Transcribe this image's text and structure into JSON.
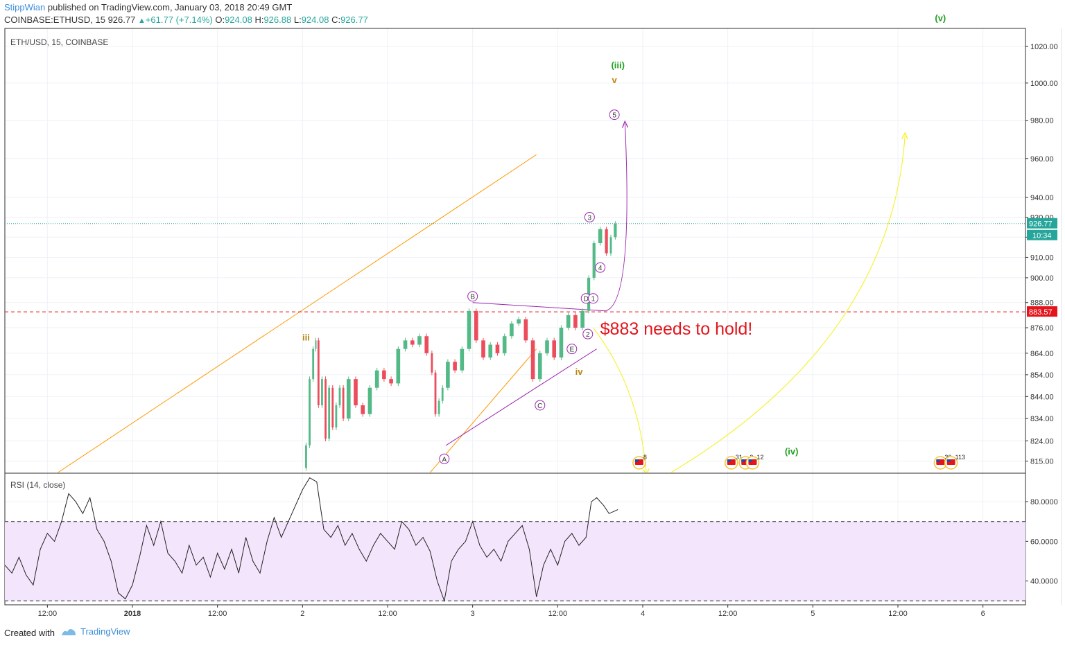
{
  "header": {
    "author": "StippWian",
    "published": " published on TradingView.com, January 03, 2018 20:49 GMT",
    "symbol": "COINBASE:ETHUSD, 15",
    "price": "926.77",
    "change": "+61.77 (+7.14%)",
    "o_label": "O:",
    "o_value": "924.08",
    "h_label": "H:",
    "h_value": "926.88",
    "l_label": "L:",
    "l_value": "924.08",
    "c_label": "C:",
    "c_value": "926.77"
  },
  "footer": {
    "created_with": "Created with",
    "brand": "TradingView"
  },
  "chart_data": {
    "type": "line",
    "symbol_label": "ETH/USD, 15, COINBASE",
    "price_axis": {
      "scale": "log",
      "ticks": [
        "1020.00",
        "1000.00",
        "980.00",
        "960.00",
        "940.00",
        "930.00",
        "920.00",
        "910.00",
        "900.00",
        "888.00",
        "876.00",
        "864.00",
        "854.00",
        "844.00",
        "834.00",
        "824.00",
        "815.00"
      ],
      "ylim": [
        810,
        1030
      ],
      "last_price_label": "926.77",
      "countdown_label": "10:34",
      "line_price_label": "883.57"
    },
    "time_axis": {
      "ticks": [
        "12:00",
        "2018",
        "12:00",
        "2",
        "12:00",
        "3",
        "12:00",
        "4",
        "12:00",
        "5",
        "12:00",
        "6"
      ],
      "range": [
        "2017-12-31 06:00",
        "2018-01-06 06:00"
      ]
    },
    "last_price": 926.77,
    "support_level": 883.57,
    "price_series": [
      [
        "2018-01-02 00:15",
        812
      ],
      [
        "2018-01-02 00:45",
        822
      ],
      [
        "2018-01-02 01:15",
        852
      ],
      [
        "2018-01-02 01:45",
        866
      ],
      [
        "2018-01-02 02:00",
        870
      ],
      [
        "2018-01-02 02:30",
        840
      ],
      [
        "2018-01-02 03:00",
        852
      ],
      [
        "2018-01-02 03:30",
        825
      ],
      [
        "2018-01-02 04:00",
        848
      ],
      [
        "2018-01-02 04:30",
        830
      ],
      [
        "2018-01-02 05:00",
        840
      ],
      [
        "2018-01-02 05:30",
        848
      ],
      [
        "2018-01-02 06:00",
        834
      ],
      [
        "2018-01-02 07:00",
        852
      ],
      [
        "2018-01-02 08:00",
        840
      ],
      [
        "2018-01-02 09:00",
        836
      ],
      [
        "2018-01-02 10:00",
        848
      ],
      [
        "2018-01-02 11:00",
        856
      ],
      [
        "2018-01-02 12:00",
        852
      ],
      [
        "2018-01-02 13:00",
        850
      ],
      [
        "2018-01-02 14:00",
        866
      ],
      [
        "2018-01-02 15:00",
        870
      ],
      [
        "2018-01-02 16:00",
        868
      ],
      [
        "2018-01-02 17:00",
        872
      ],
      [
        "2018-01-02 18:00",
        864
      ],
      [
        "2018-01-02 18:30",
        855
      ],
      [
        "2018-01-02 19:00",
        836
      ],
      [
        "2018-01-02 19:30",
        842
      ],
      [
        "2018-01-02 20:00",
        848
      ],
      [
        "2018-01-02 21:00",
        860
      ],
      [
        "2018-01-02 22:00",
        856
      ],
      [
        "2018-01-02 23:00",
        866
      ],
      [
        "2018-01-03 00:00",
        884
      ],
      [
        "2018-01-03 01:00",
        870
      ],
      [
        "2018-01-03 02:00",
        862
      ],
      [
        "2018-01-03 03:00",
        868
      ],
      [
        "2018-01-03 04:00",
        864
      ],
      [
        "2018-01-03 05:00",
        872
      ],
      [
        "2018-01-03 06:00",
        878
      ],
      [
        "2018-01-03 07:00",
        880
      ],
      [
        "2018-01-03 08:00",
        870
      ],
      [
        "2018-01-03 09:00",
        852
      ],
      [
        "2018-01-03 10:00",
        864
      ],
      [
        "2018-01-03 11:00",
        870
      ],
      [
        "2018-01-03 12:00",
        862
      ],
      [
        "2018-01-03 13:00",
        876
      ],
      [
        "2018-01-03 14:00",
        882
      ],
      [
        "2018-01-03 15:00",
        876
      ],
      [
        "2018-01-03 16:00",
        884
      ],
      [
        "2018-01-03 16:45",
        900
      ],
      [
        "2018-01-03 17:30",
        917
      ],
      [
        "2018-01-03 18:30",
        924
      ],
      [
        "2018-01-03 19:15",
        912
      ],
      [
        "2018-01-03 19:45",
        920
      ],
      [
        "2018-01-03 20:30",
        926.77
      ]
    ],
    "rsi": {
      "label": "RSI (14, close)",
      "ticks": [
        "80.0000",
        "60.0000",
        "40.0000"
      ],
      "ylim": [
        28,
        94
      ],
      "band": [
        30,
        70
      ],
      "series": [
        [
          "2017-12-31 06:00",
          48
        ],
        [
          "2017-12-31 07:00",
          44
        ],
        [
          "2017-12-31 08:00",
          52
        ],
        [
          "2017-12-31 09:00",
          43
        ],
        [
          "2017-12-31 10:00",
          38
        ],
        [
          "2017-12-31 11:00",
          56
        ],
        [
          "2017-12-31 12:00",
          64
        ],
        [
          "2017-12-31 13:00",
          60
        ],
        [
          "2017-12-31 14:00",
          70
        ],
        [
          "2017-12-31 15:00",
          84
        ],
        [
          "2017-12-31 16:00",
          80
        ],
        [
          "2017-12-31 17:00",
          74
        ],
        [
          "2017-12-31 18:00",
          82
        ],
        [
          "2017-12-31 19:00",
          66
        ],
        [
          "2017-12-31 20:00",
          60
        ],
        [
          "2017-12-31 21:00",
          50
        ],
        [
          "2017-12-31 22:00",
          34
        ],
        [
          "2017-12-31 23:00",
          31
        ],
        [
          "2018-01-01 00:00",
          38
        ],
        [
          "2018-01-01 01:00",
          52
        ],
        [
          "2018-01-01 02:00",
          68
        ],
        [
          "2018-01-01 03:00",
          58
        ],
        [
          "2018-01-01 04:00",
          70
        ],
        [
          "2018-01-01 05:00",
          54
        ],
        [
          "2018-01-01 06:00",
          50
        ],
        [
          "2018-01-01 07:00",
          44
        ],
        [
          "2018-01-01 08:00",
          58
        ],
        [
          "2018-01-01 09:00",
          48
        ],
        [
          "2018-01-01 10:00",
          52
        ],
        [
          "2018-01-01 11:00",
          42
        ],
        [
          "2018-01-01 12:00",
          54
        ],
        [
          "2018-01-01 13:00",
          46
        ],
        [
          "2018-01-01 14:00",
          56
        ],
        [
          "2018-01-01 15:00",
          44
        ],
        [
          "2018-01-01 16:00",
          62
        ],
        [
          "2018-01-01 17:00",
          50
        ],
        [
          "2018-01-01 18:00",
          44
        ],
        [
          "2018-01-01 19:00",
          60
        ],
        [
          "2018-01-01 20:00",
          72
        ],
        [
          "2018-01-01 21:00",
          62
        ],
        [
          "2018-01-01 22:00",
          70
        ],
        [
          "2018-01-01 23:00",
          78
        ],
        [
          "2018-01-02 00:00",
          86
        ],
        [
          "2018-01-02 01:00",
          92
        ],
        [
          "2018-01-02 02:00",
          90
        ],
        [
          "2018-01-02 03:00",
          66
        ],
        [
          "2018-01-02 04:00",
          62
        ],
        [
          "2018-01-02 05:00",
          68
        ],
        [
          "2018-01-02 06:00",
          58
        ],
        [
          "2018-01-02 07:00",
          64
        ],
        [
          "2018-01-02 08:00",
          56
        ],
        [
          "2018-01-02 09:00",
          50
        ],
        [
          "2018-01-02 10:00",
          58
        ],
        [
          "2018-01-02 11:00",
          64
        ],
        [
          "2018-01-02 12:00",
          60
        ],
        [
          "2018-01-02 13:00",
          56
        ],
        [
          "2018-01-02 14:00",
          70
        ],
        [
          "2018-01-02 15:00",
          66
        ],
        [
          "2018-01-02 16:00",
          58
        ],
        [
          "2018-01-02 17:00",
          62
        ],
        [
          "2018-01-02 18:00",
          55
        ],
        [
          "2018-01-02 19:00",
          40
        ],
        [
          "2018-01-02 20:00",
          30
        ],
        [
          "2018-01-02 21:00",
          50
        ],
        [
          "2018-01-02 22:00",
          56
        ],
        [
          "2018-01-02 23:00",
          60
        ],
        [
          "2018-01-03 00:00",
          70
        ],
        [
          "2018-01-03 01:00",
          58
        ],
        [
          "2018-01-03 02:00",
          52
        ],
        [
          "2018-01-03 03:00",
          56
        ],
        [
          "2018-01-03 04:00",
          50
        ],
        [
          "2018-01-03 05:00",
          60
        ],
        [
          "2018-01-03 06:00",
          64
        ],
        [
          "2018-01-03 07:00",
          68
        ],
        [
          "2018-01-03 08:00",
          56
        ],
        [
          "2018-01-03 09:00",
          32
        ],
        [
          "2018-01-03 10:00",
          48
        ],
        [
          "2018-01-03 11:00",
          56
        ],
        [
          "2018-01-03 12:00",
          48
        ],
        [
          "2018-01-03 13:00",
          60
        ],
        [
          "2018-01-03 14:00",
          64
        ],
        [
          "2018-01-03 15:00",
          58
        ],
        [
          "2018-01-03 16:00",
          62
        ],
        [
          "2018-01-03 16:45",
          80
        ],
        [
          "2018-01-03 17:30",
          82
        ],
        [
          "2018-01-03 18:30",
          78
        ],
        [
          "2018-01-03 19:15",
          74
        ],
        [
          "2018-01-03 20:30",
          76
        ]
      ]
    },
    "annotations": {
      "note": "$883 needs to hold!",
      "note_color": "#e4141b",
      "labels": [
        {
          "text": "iii",
          "t": "2018-01-02 00:30",
          "p": 870,
          "color": "#b8860b"
        },
        {
          "text": "iv",
          "t": "2018-01-03 15:00",
          "p": 854,
          "color": "#b8860b"
        },
        {
          "text": "v",
          "t": "2018-01-03 20:00",
          "p": 1000,
          "color": "#b8860b"
        },
        {
          "text": "(iii)",
          "t": "2018-01-03 20:30",
          "p": 1008,
          "color": "#22a022"
        },
        {
          "text": "(iv)",
          "t": "2018-01-04 21:00",
          "p": 818,
          "color": "#22a022"
        },
        {
          "text": "(v)",
          "t": "2018-01-05 18:00",
          "p": 1034,
          "color": "#22a022"
        }
      ],
      "circled": [
        {
          "text": "A",
          "t": "2018-01-02 20:00",
          "p": 816
        },
        {
          "text": "B",
          "t": "2018-01-03 00:00",
          "p": 891
        },
        {
          "text": "C",
          "t": "2018-01-03 09:30",
          "p": 840
        },
        {
          "text": "D",
          "t": "2018-01-03 16:00",
          "p": 890
        },
        {
          "text": "E",
          "t": "2018-01-03 14:00",
          "p": 866
        },
        {
          "text": "1",
          "t": "2018-01-03 17:00",
          "p": 890
        },
        {
          "text": "2",
          "t": "2018-01-03 16:15",
          "p": 873
        },
        {
          "text": "3",
          "t": "2018-01-03 16:30",
          "p": 930
        },
        {
          "text": "4",
          "t": "2018-01-03 18:00",
          "p": 905
        },
        {
          "text": "5",
          "t": "2018-01-03 20:00",
          "p": 983
        }
      ],
      "event_labels": [
        "8",
        "31",
        "2",
        "12",
        "36",
        "113"
      ],
      "colors": {
        "purple": "#9c27b0",
        "orange": "#ff9800",
        "yellow": "#f4f113",
        "green": "#22a022",
        "up": "#53b987",
        "down": "#eb4d5c"
      }
    }
  }
}
